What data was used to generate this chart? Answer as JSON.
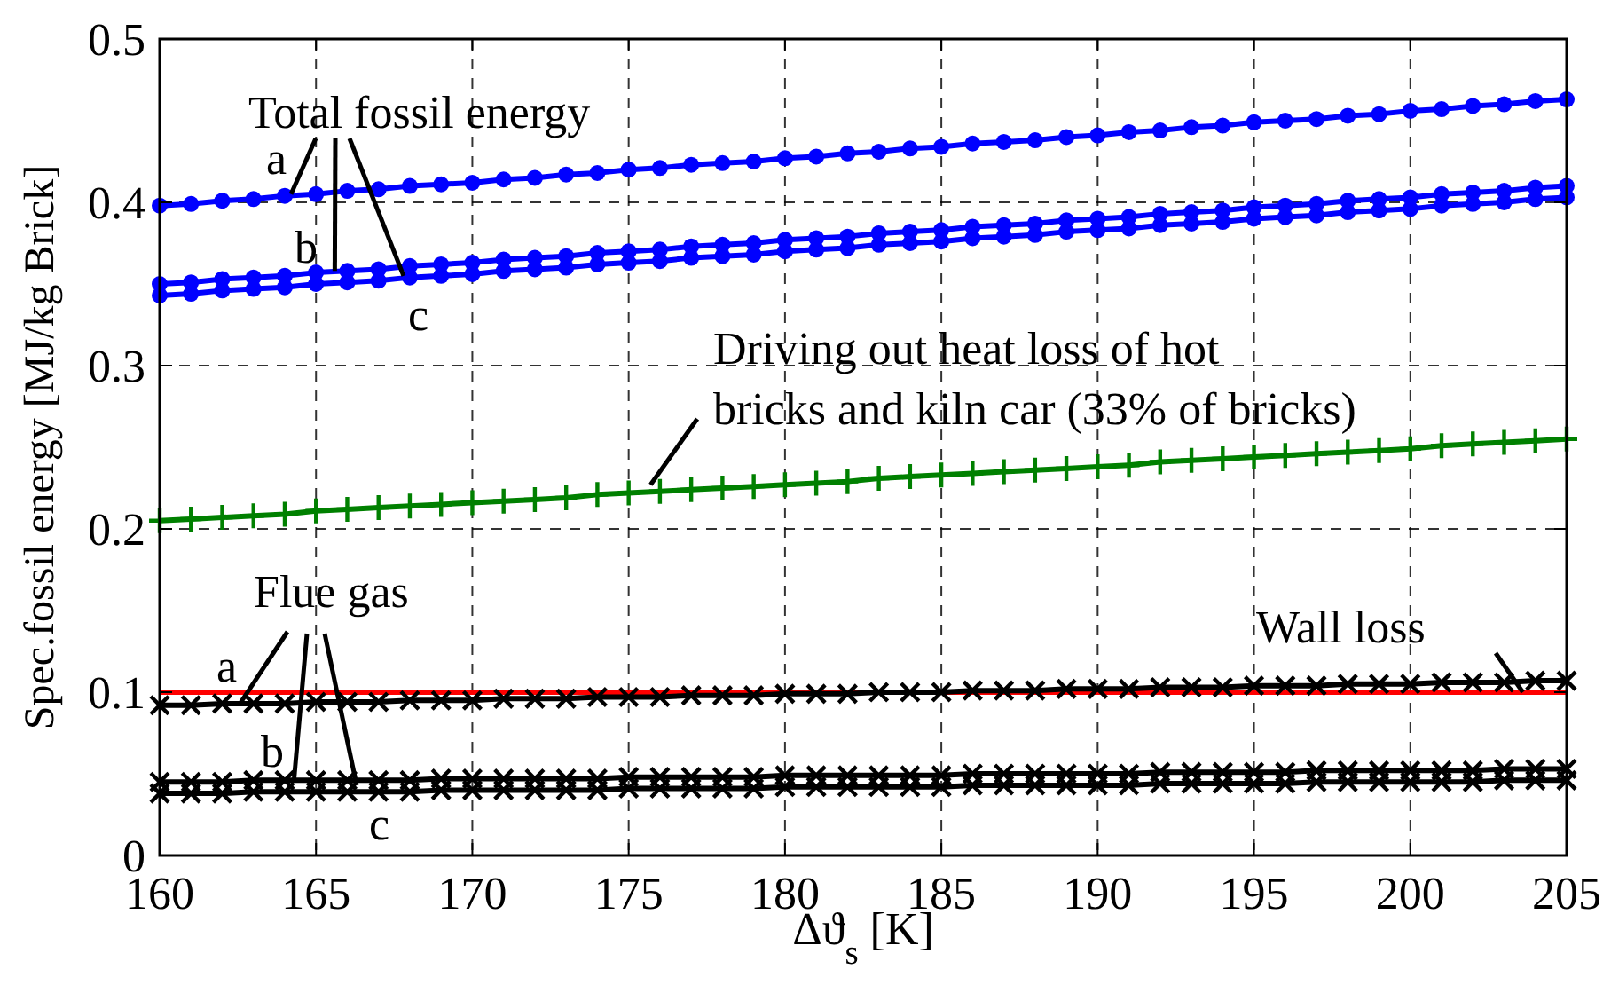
{
  "chart_data": {
    "type": "line",
    "xlabel": "Δϑ$_{s}$ [K]",
    "ylabel": "Spec.fossil energy [MJ/kg Brick]",
    "x": [
      160,
      161,
      162,
      163,
      164,
      165,
      166,
      167,
      168,
      169,
      170,
      171,
      172,
      173,
      174,
      175,
      176,
      177,
      178,
      179,
      180,
      181,
      182,
      183,
      184,
      185,
      186,
      187,
      188,
      189,
      190,
      191,
      192,
      193,
      194,
      195,
      196,
      197,
      198,
      199,
      200,
      201,
      202,
      203,
      204,
      205
    ],
    "series": [
      {
        "color": "#0000ff",
        "marker": "circle",
        "values": [
          0.398,
          0.399,
          0.401,
          0.402,
          0.404,
          0.405,
          0.407,
          0.408,
          0.41,
          0.411,
          0.412,
          0.414,
          0.415,
          0.417,
          0.418,
          0.42,
          0.421,
          0.423,
          0.424,
          0.425,
          0.427,
          0.428,
          0.43,
          0.431,
          0.433,
          0.434,
          0.436,
          0.437,
          0.438,
          0.44,
          0.441,
          0.443,
          0.444,
          0.446,
          0.447,
          0.449,
          0.45,
          0.451,
          0.453,
          0.454,
          0.456,
          0.457,
          0.459,
          0.46,
          0.462,
          0.463
        ]
      },
      {
        "color": "#0000ff",
        "marker": "circle",
        "values": [
          0.35,
          0.351,
          0.353,
          0.354,
          0.355,
          0.357,
          0.358,
          0.359,
          0.361,
          0.362,
          0.363,
          0.365,
          0.366,
          0.367,
          0.369,
          0.37,
          0.371,
          0.373,
          0.374,
          0.375,
          0.377,
          0.378,
          0.379,
          0.381,
          0.382,
          0.383,
          0.385,
          0.386,
          0.387,
          0.389,
          0.39,
          0.391,
          0.393,
          0.394,
          0.395,
          0.397,
          0.398,
          0.399,
          0.401,
          0.402,
          0.403,
          0.405,
          0.406,
          0.407,
          0.409,
          0.41
        ]
      },
      {
        "color": "#0000ff",
        "marker": "circle",
        "values": [
          0.343,
          0.344,
          0.346,
          0.347,
          0.348,
          0.35,
          0.351,
          0.352,
          0.354,
          0.355,
          0.356,
          0.358,
          0.359,
          0.36,
          0.362,
          0.363,
          0.364,
          0.366,
          0.367,
          0.368,
          0.37,
          0.371,
          0.372,
          0.374,
          0.375,
          0.376,
          0.378,
          0.379,
          0.38,
          0.382,
          0.383,
          0.384,
          0.386,
          0.387,
          0.388,
          0.39,
          0.391,
          0.392,
          0.394,
          0.395,
          0.396,
          0.398,
          0.399,
          0.4,
          0.402,
          0.403
        ]
      },
      {
        "color": "#008000",
        "marker": "cross",
        "values": [
          0.205,
          0.206,
          0.207,
          0.208,
          0.209,
          0.211,
          0.212,
          0.213,
          0.214,
          0.215,
          0.216,
          0.217,
          0.218,
          0.219,
          0.221,
          0.222,
          0.223,
          0.224,
          0.225,
          0.226,
          0.227,
          0.228,
          0.229,
          0.231,
          0.232,
          0.233,
          0.234,
          0.235,
          0.236,
          0.237,
          0.238,
          0.239,
          0.241,
          0.242,
          0.243,
          0.244,
          0.245,
          0.246,
          0.247,
          0.248,
          0.249,
          0.251,
          0.252,
          0.253,
          0.254,
          0.255
        ]
      },
      {
        "color": "#ff0000",
        "marker": "none",
        "x": [
          160,
          205
        ],
        "values": [
          0.1,
          0.1
        ]
      },
      {
        "color": "#000000",
        "marker": "x",
        "values": [
          0.092,
          0.092,
          0.093,
          0.093,
          0.093,
          0.094,
          0.094,
          0.094,
          0.095,
          0.095,
          0.095,
          0.096,
          0.096,
          0.096,
          0.097,
          0.097,
          0.097,
          0.098,
          0.098,
          0.098,
          0.099,
          0.099,
          0.099,
          0.1,
          0.1,
          0.1,
          0.101,
          0.101,
          0.101,
          0.102,
          0.102,
          0.102,
          0.103,
          0.103,
          0.103,
          0.104,
          0.104,
          0.104,
          0.105,
          0.105,
          0.105,
          0.106,
          0.106,
          0.106,
          0.107,
          0.107
        ]
      },
      {
        "color": "#000000",
        "marker": "x",
        "values": [
          0.045,
          0.045,
          0.045,
          0.046,
          0.046,
          0.046,
          0.046,
          0.046,
          0.046,
          0.047,
          0.047,
          0.047,
          0.047,
          0.047,
          0.047,
          0.048,
          0.048,
          0.048,
          0.048,
          0.048,
          0.049,
          0.049,
          0.049,
          0.049,
          0.049,
          0.049,
          0.05,
          0.05,
          0.05,
          0.05,
          0.05,
          0.05,
          0.051,
          0.051,
          0.051,
          0.051,
          0.051,
          0.052,
          0.052,
          0.052,
          0.052,
          0.052,
          0.052,
          0.053,
          0.053,
          0.053
        ]
      },
      {
        "color": "#000000",
        "marker": "x",
        "values": [
          0.038,
          0.038,
          0.038,
          0.039,
          0.039,
          0.039,
          0.039,
          0.039,
          0.039,
          0.04,
          0.04,
          0.04,
          0.04,
          0.04,
          0.04,
          0.041,
          0.041,
          0.041,
          0.041,
          0.041,
          0.042,
          0.042,
          0.042,
          0.042,
          0.042,
          0.042,
          0.043,
          0.043,
          0.043,
          0.043,
          0.043,
          0.043,
          0.044,
          0.044,
          0.044,
          0.044,
          0.044,
          0.045,
          0.045,
          0.045,
          0.045,
          0.045,
          0.045,
          0.046,
          0.046,
          0.046
        ]
      }
    ],
    "xlim": [
      160,
      205
    ],
    "xticks": [
      160,
      165,
      170,
      175,
      180,
      185,
      190,
      195,
      200,
      205
    ],
    "ylim": [
      0,
      0.5
    ],
    "yticks": [
      0,
      0.1,
      0.2,
      0.3,
      0.4,
      0.5
    ],
    "grid": true,
    "annotations": [
      {
        "text": "Total fossil energy",
        "x": 165.6,
        "y": 0.358
      },
      {
        "text": "a",
        "x": 164.2,
        "y": 0.405
      },
      {
        "text": "b",
        "x": 165.6,
        "y": 0.358
      },
      {
        "text": "c",
        "x": 167.8,
        "y": 0.355
      },
      {
        "text": "Driving out heat loss of hot bricks and kiln car (33% of bricks)",
        "x": 175.7,
        "y": 0.227
      },
      {
        "text": "Flue gas",
        "x": 164.3,
        "y": 0.047
      },
      {
        "text": "a",
        "x": 162.6,
        "y": 0.094
      },
      {
        "text": "b",
        "x": 164.3,
        "y": 0.047
      },
      {
        "text": "c",
        "x": 166.3,
        "y": 0.043
      },
      {
        "text": "Wall loss",
        "x": 203.6,
        "y": 0.1
      }
    ]
  }
}
